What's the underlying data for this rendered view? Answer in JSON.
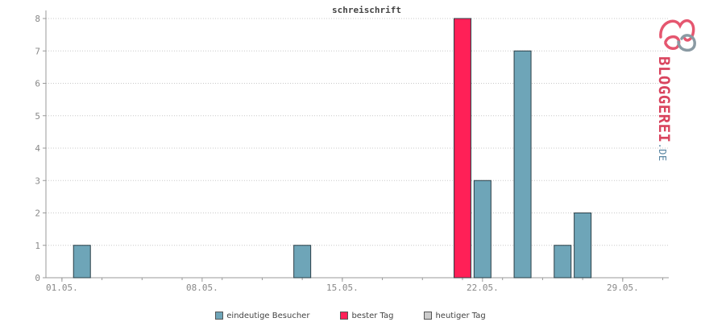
{
  "chart_data": {
    "type": "bar",
    "title": "schreischrift",
    "xlabel": "",
    "ylabel": "",
    "ylim": [
      0,
      8
    ],
    "yticks": [
      0,
      1,
      2,
      3,
      4,
      5,
      6,
      7,
      8
    ],
    "grid": true,
    "x_tick_labels": [
      {
        "day": 1,
        "label": "01.05."
      },
      {
        "day": 8,
        "label": "08.05."
      },
      {
        "day": 15,
        "label": "15.05."
      },
      {
        "day": 22,
        "label": "22.05."
      },
      {
        "day": 29,
        "label": "29.05."
      }
    ],
    "series": [
      {
        "name": "eindeutige Besucher",
        "color": "#6ea5b8",
        "points": [
          {
            "day": 2,
            "value": 1
          },
          {
            "day": 13,
            "value": 1
          },
          {
            "day": 22,
            "value": 3
          },
          {
            "day": 24,
            "value": 7
          },
          {
            "day": 26,
            "value": 1
          },
          {
            "day": 27,
            "value": 2
          }
        ]
      },
      {
        "name": "bester Tag",
        "color": "#ff2057",
        "points": [
          {
            "day": 21,
            "value": 8
          }
        ]
      },
      {
        "name": "heutiger Tag",
        "color": "#cccccc",
        "points": []
      }
    ],
    "legend_position": "bottom"
  },
  "legend": [
    {
      "label": "eindeutige Besucher",
      "color": "#6ea5b8"
    },
    {
      "label": "bester Tag",
      "color": "#ff2057"
    },
    {
      "label": "heutiger Tag",
      "color": "#cccccc"
    }
  ],
  "logo": {
    "text": "BLOGGEREI.DE",
    "icon": "bloggerei-logo-icon"
  }
}
